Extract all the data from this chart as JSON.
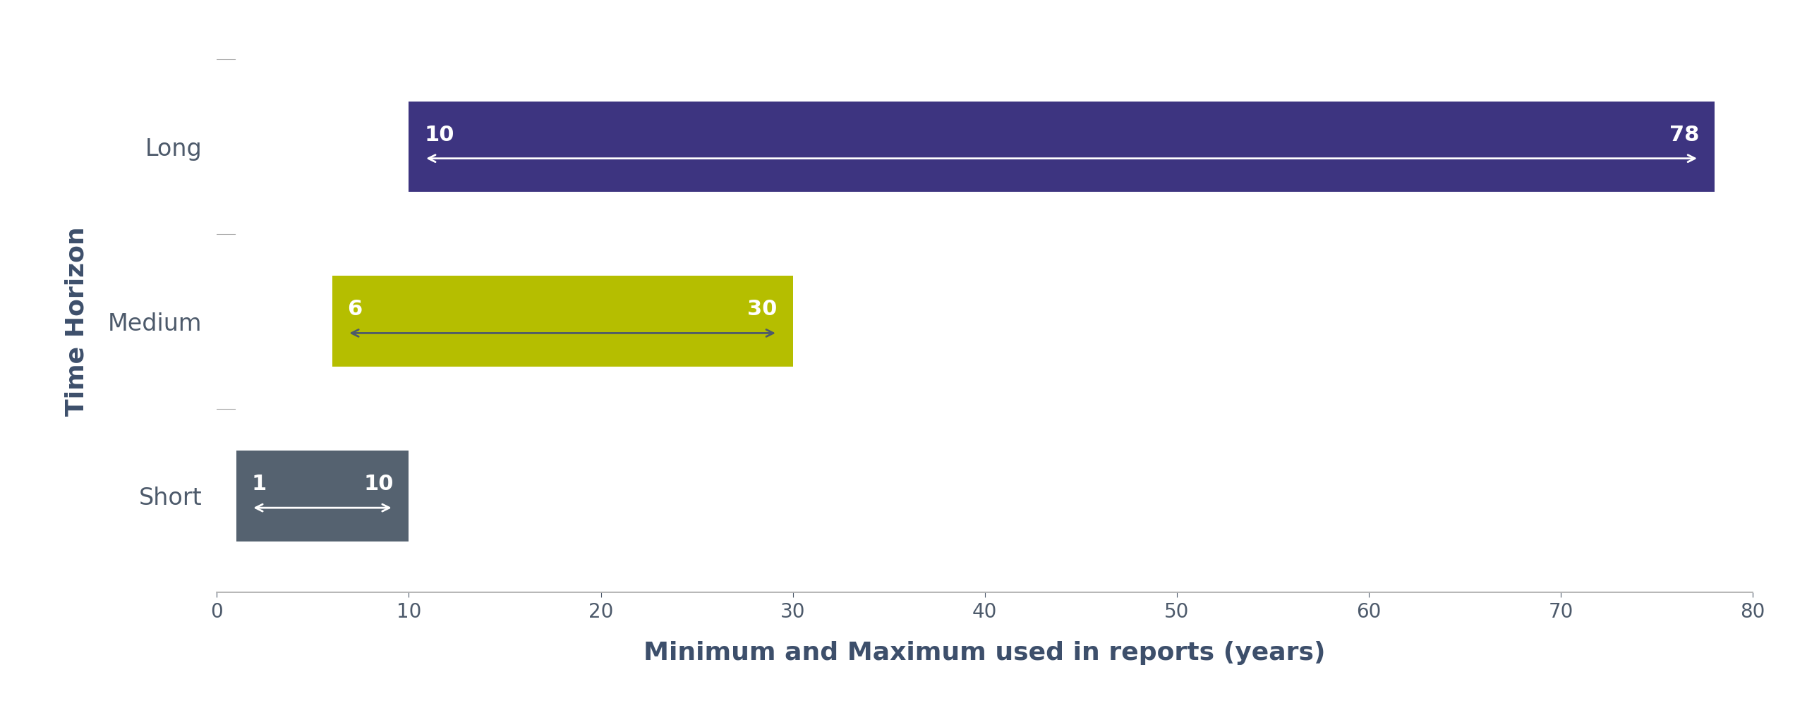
{
  "categories": [
    "Short",
    "Medium",
    "Long"
  ],
  "bar_min": [
    1,
    6,
    10
  ],
  "bar_max": [
    10,
    30,
    78
  ],
  "bar_colors": [
    "#556270",
    "#b5be00",
    "#3d3480"
  ],
  "arrow_colors": [
    "#ffffff",
    "#4d5a6b",
    "#ffffff"
  ],
  "xlabel": "Minimum and Maximum used in reports (years)",
  "ylabel": "Time Horizon",
  "xlim": [
    0,
    80
  ],
  "xticks": [
    0,
    10,
    20,
    30,
    40,
    50,
    60,
    70,
    80
  ],
  "bar_height": 0.52,
  "background_color": "#ffffff",
  "xlabel_fontsize": 26,
  "ylabel_fontsize": 26,
  "tick_fontsize": 20,
  "label_fontsize": 22,
  "category_fontsize": 24
}
